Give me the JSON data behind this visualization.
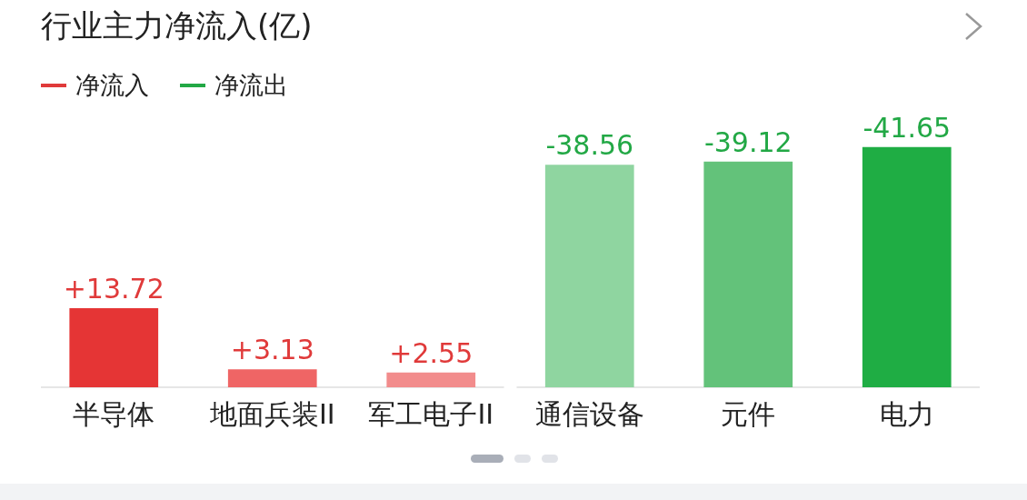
{
  "chart_data": {
    "type": "bar",
    "title": "行业主力净流入(亿)",
    "categories": [
      "半导体",
      "地面兵装II",
      "军工电子II",
      "通信设备",
      "元件",
      "电力"
    ],
    "legend": "top left",
    "annotations": [
      {
        "text": "-38.56",
        "x": "通信设备",
        "y": 38.56
      },
      {
        "text": "-39.12",
        "x": "元件",
        "y": 39.12
      },
      {
        "text": "-41.65",
        "x": "电力",
        "y": 41.65
      }
    ],
    "grid": false,
    "series": [
      {
        "name": "净流入",
        "color": "#e03a3a",
        "colors": [
          "#e53535",
          "#ef6565",
          "#f28c8c",
          null,
          null,
          null
        ],
        "values": [
          13.72,
          3.13,
          2.55,
          null,
          null,
          null
        ],
        "value_labels": [
          "+13.72",
          "+3.13",
          "+2.55",
          null,
          null,
          null
        ]
      },
      {
        "name": "净流出",
        "color": "#22a845",
        "colors": [
          null,
          null,
          null,
          "#8fd5a0",
          "#63c27a",
          "#1fad44"
        ],
        "values": [
          null,
          null,
          null,
          38.56,
          39.12,
          41.65
        ]
      }
    ]
  }
}
